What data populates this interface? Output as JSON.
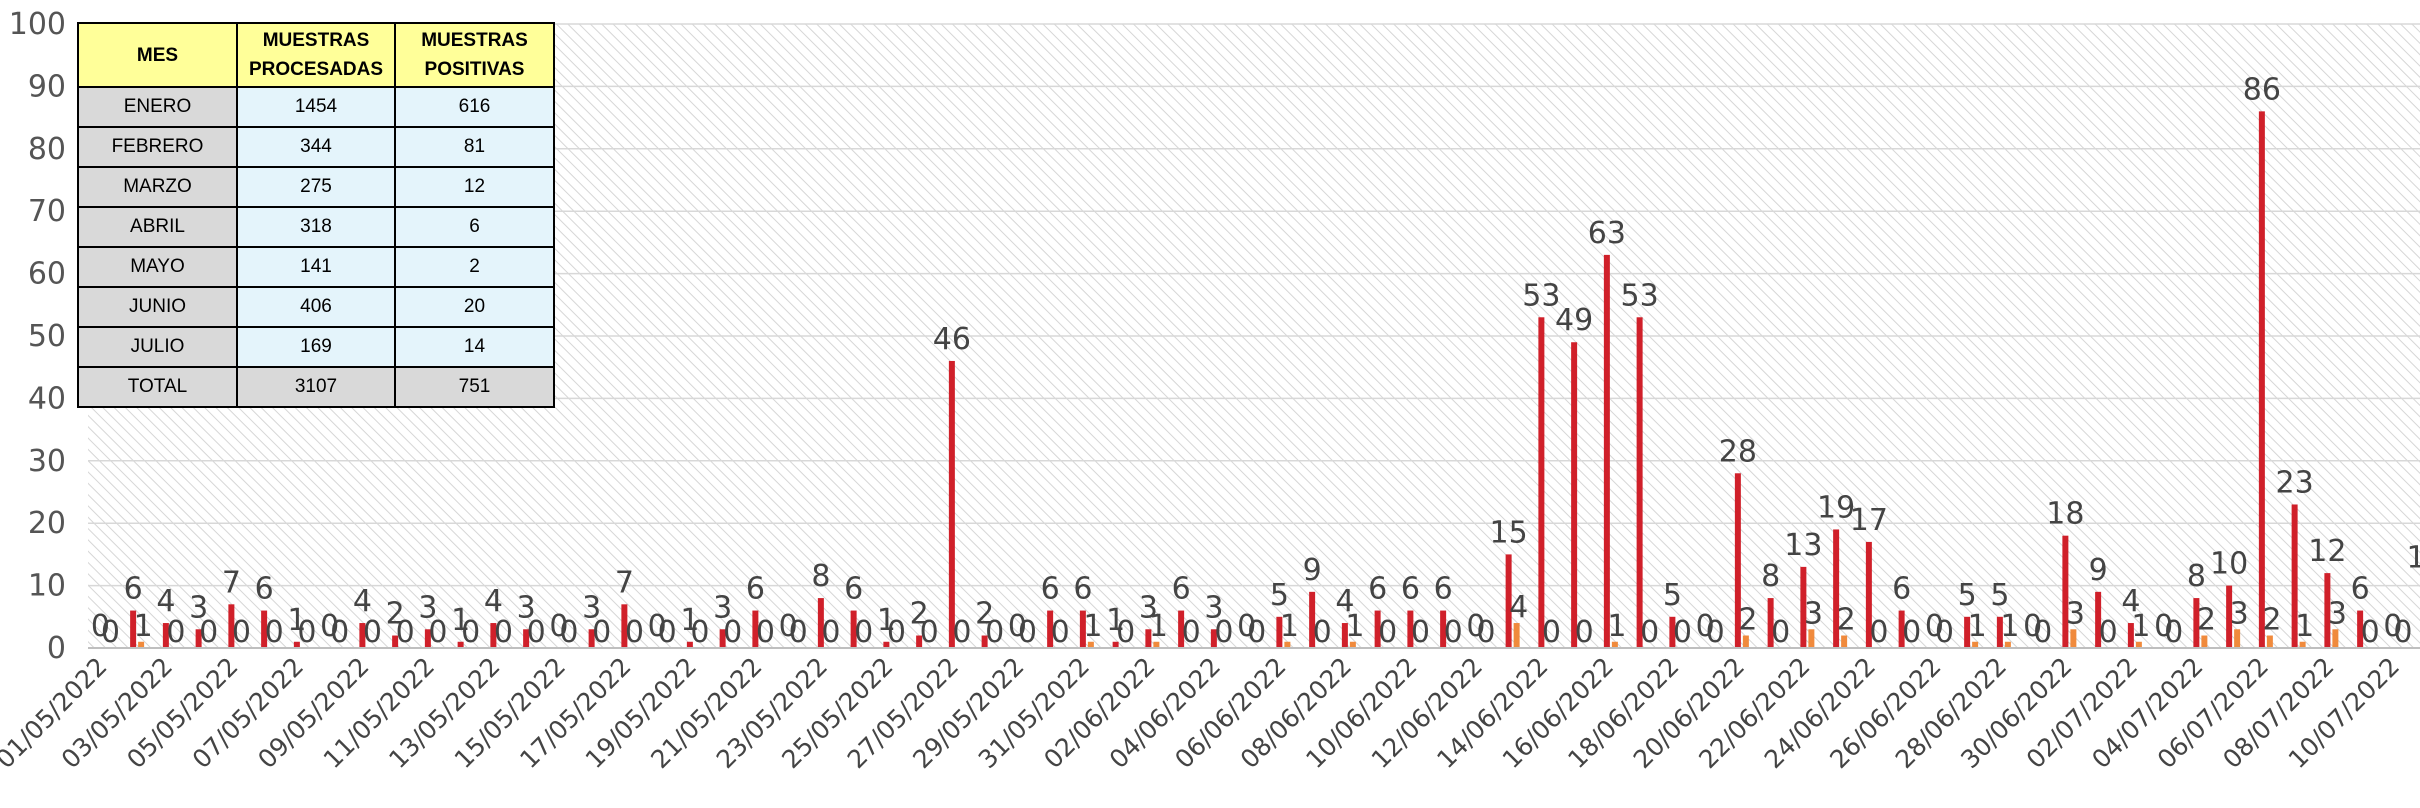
{
  "table": {
    "headers": [
      "MES",
      "MUESTRAS PROCESADAS",
      "MUESTRAS POSITIVAS"
    ],
    "rows": [
      [
        "ENERO",
        "1454",
        "616"
      ],
      [
        "FEBRERO",
        "344",
        "81"
      ],
      [
        "MARZO",
        "275",
        "12"
      ],
      [
        "ABRIL",
        "318",
        "6"
      ],
      [
        "MAYO",
        "141",
        "2"
      ],
      [
        "JUNIO",
        "406",
        "20"
      ],
      [
        "JULIO",
        "169",
        "14"
      ],
      [
        "TOTAL",
        "3107",
        "751"
      ]
    ]
  },
  "chart_data": {
    "type": "bar",
    "ylim": [
      0,
      100
    ],
    "yticks": [
      0,
      10,
      20,
      30,
      40,
      50,
      60,
      70,
      80,
      90,
      100
    ],
    "grid": true,
    "legend": "none",
    "colors": {
      "series1": "#d0202a",
      "series2": "#f08a3c",
      "grid": "#d8d8d8"
    },
    "categories": [
      "01/05/2022",
      "02/05/2022",
      "03/05/2022",
      "04/05/2022",
      "05/05/2022",
      "06/05/2022",
      "07/05/2022",
      "08/05/2022",
      "09/05/2022",
      "10/05/2022",
      "11/05/2022",
      "12/05/2022",
      "13/05/2022",
      "14/05/2022",
      "15/05/2022",
      "16/05/2022",
      "17/05/2022",
      "18/05/2022",
      "19/05/2022",
      "20/05/2022",
      "21/05/2022",
      "22/05/2022",
      "23/05/2022",
      "24/05/2022",
      "25/05/2022",
      "26/05/2022",
      "27/05/2022",
      "28/05/2022",
      "29/05/2022",
      "30/05/2022",
      "31/05/2022",
      "01/06/2022",
      "02/06/2022",
      "03/06/2022",
      "04/06/2022",
      "05/06/2022",
      "06/06/2022",
      "07/06/2022",
      "08/06/2022",
      "09/06/2022",
      "10/06/2022",
      "11/06/2022",
      "12/06/2022",
      "13/06/2022",
      "14/06/2022",
      "15/06/2022",
      "16/06/2022",
      "17/06/2022",
      "18/06/2022",
      "19/06/2022",
      "20/06/2022",
      "21/06/2022",
      "22/06/2022",
      "23/06/2022",
      "24/06/2022",
      "25/06/2022",
      "26/06/2022",
      "27/06/2022",
      "28/06/2022",
      "29/06/2022",
      "30/06/2022",
      "01/07/2022",
      "02/07/2022",
      "03/07/2022",
      "04/07/2022",
      "05/07/2022",
      "06/07/2022",
      "07/07/2022",
      "08/07/2022",
      "09/07/2022",
      "10/07/2022",
      "11/07/2022",
      "12/07/2022",
      "13/07/2022"
    ],
    "shown_tick_labels": [
      "01/05/2022",
      "03/05/2022",
      "05/05/2022",
      "07/05/2022",
      "09/05/2022",
      "11/05/2022",
      "13/05/2022",
      "15/05/2022",
      "17/05/2022",
      "19/05/2022",
      "21/05/2022",
      "23/05/2022",
      "25/05/2022",
      "27/05/2022",
      "29/05/2022",
      "31/05/2022",
      "02/06/2022",
      "04/06/2022",
      "06/06/2022",
      "08/06/2022",
      "10/06/2022",
      "12/06/2022",
      "14/06/2022",
      "16/06/2022",
      "18/06/2022",
      "20/06/2022",
      "22/06/2022",
      "24/06/2022",
      "26/06/2022",
      "28/06/2022",
      "30/06/2022",
      "02/07/2022",
      "04/07/2022",
      "06/07/2022",
      "08/07/2022",
      "10/07/2022"
    ],
    "series": [
      {
        "values": [
          0,
          6,
          4,
          3,
          7,
          6,
          1,
          0,
          4,
          2,
          3,
          1,
          4,
          3,
          0,
          3,
          7,
          0,
          1,
          3,
          6,
          0,
          8,
          6,
          1,
          2,
          46,
          2,
          0,
          6,
          6,
          1,
          3,
          6,
          3,
          0,
          5,
          9,
          4,
          6,
          6,
          6,
          0,
          15,
          53,
          49,
          63,
          53,
          5,
          0,
          28,
          8,
          13,
          19,
          17,
          6,
          0,
          5,
          5,
          0,
          18,
          9,
          4,
          0,
          8,
          10,
          86,
          23,
          12,
          6,
          0,
          11,
          0,
          0
        ]
      },
      {
        "values": [
          0,
          1,
          0,
          0,
          0,
          0,
          0,
          0,
          0,
          0,
          0,
          0,
          0,
          0,
          0,
          0,
          0,
          0,
          0,
          0,
          0,
          0,
          0,
          0,
          0,
          0,
          0,
          0,
          0,
          0,
          1,
          0,
          1,
          0,
          0,
          0,
          1,
          0,
          1,
          0,
          0,
          0,
          0,
          4,
          0,
          0,
          1,
          0,
          0,
          0,
          2,
          0,
          3,
          2,
          0,
          0,
          0,
          1,
          1,
          0,
          3,
          0,
          1,
          0,
          2,
          3,
          2,
          1,
          3,
          0,
          0,
          2,
          0,
          0
        ]
      }
    ]
  }
}
